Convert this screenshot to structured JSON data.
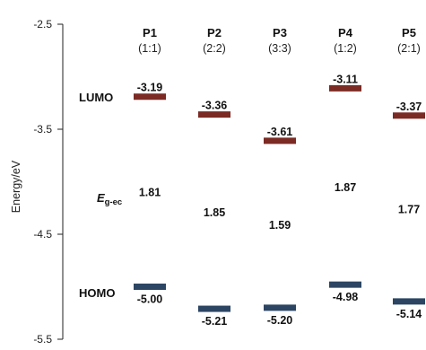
{
  "chart_data": {
    "type": "energy-level diagram",
    "ylabel": "Energy/eV",
    "ylim": [
      -5.5,
      -2.5
    ],
    "yticks": [
      "-2.5",
      "-3.5",
      "-4.5",
      "-5.5"
    ],
    "ytick_values": [
      -2.5,
      -3.5,
      -4.5,
      -5.5
    ],
    "row_labels": {
      "lumo": "LUMO",
      "homo": "HOMO",
      "gap_symbol": "E",
      "gap_subscript": "g-ec"
    },
    "colors": {
      "lumo": "#7b2a24",
      "homo": "#2c4563"
    },
    "categories": [
      {
        "name": "P1",
        "ratio": "(1:1)",
        "lumo": -3.19,
        "homo": -5.0,
        "lumo_label": "-3.19",
        "homo_label": "-5.00",
        "gap": "1.81"
      },
      {
        "name": "P2",
        "ratio": "(2:2)",
        "lumo": -3.36,
        "homo": -5.21,
        "lumo_label": "-3.36",
        "homo_label": "-5.21",
        "gap": "1.85"
      },
      {
        "name": "P3",
        "ratio": "(3:3)",
        "lumo": -3.61,
        "homo": -5.2,
        "lumo_label": "-3.61",
        "homo_label": "-5.20",
        "gap": "1.59"
      },
      {
        "name": "P4",
        "ratio": "(1:2)",
        "lumo": -3.11,
        "homo": -4.98,
        "lumo_label": "-3.11",
        "homo_label": "-4.98",
        "gap": "1.87"
      },
      {
        "name": "P5",
        "ratio": "(2:1)",
        "lumo": -3.37,
        "homo": -5.14,
        "lumo_label": "-3.37",
        "homo_label": "-5.14",
        "gap": "1.77"
      }
    ]
  }
}
